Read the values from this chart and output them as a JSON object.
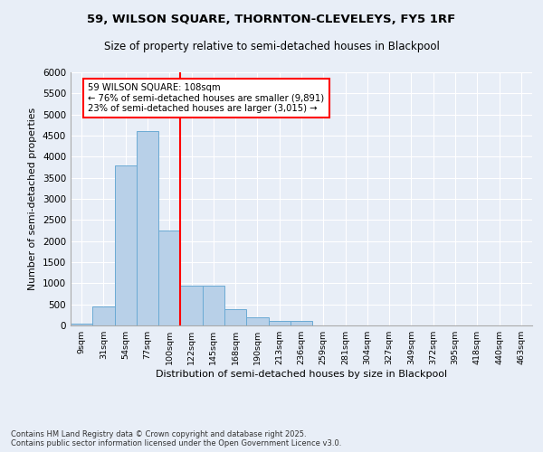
{
  "title1": "59, WILSON SQUARE, THORNTON-CLEVELEYS, FY5 1RF",
  "title2": "Size of property relative to semi-detached houses in Blackpool",
  "xlabel": "Distribution of semi-detached houses by size in Blackpool",
  "ylabel": "Number of semi-detached properties",
  "categories": [
    "9sqm",
    "31sqm",
    "54sqm",
    "77sqm",
    "100sqm",
    "122sqm",
    "145sqm",
    "168sqm",
    "190sqm",
    "213sqm",
    "236sqm",
    "259sqm",
    "281sqm",
    "304sqm",
    "327sqm",
    "349sqm",
    "372sqm",
    "395sqm",
    "418sqm",
    "440sqm",
    "463sqm"
  ],
  "values": [
    50,
    450,
    3800,
    4600,
    2250,
    950,
    950,
    380,
    200,
    110,
    100,
    0,
    0,
    0,
    0,
    0,
    0,
    0,
    0,
    0,
    0
  ],
  "bar_color": "#b8d0e8",
  "bar_edge_color": "#6aaad4",
  "vline_color": "red",
  "vline_pos": 4.5,
  "annotation_title": "59 WILSON SQUARE: 108sqm",
  "annotation_line1": "← 76% of semi-detached houses are smaller (9,891)",
  "annotation_line2": "23% of semi-detached houses are larger (3,015) →",
  "annotation_box_color": "white",
  "annotation_box_edge": "red",
  "ylim": [
    0,
    6000
  ],
  "yticks": [
    0,
    500,
    1000,
    1500,
    2000,
    2500,
    3000,
    3500,
    4000,
    4500,
    5000,
    5500,
    6000
  ],
  "background_color": "#e8eef7",
  "footer1": "Contains HM Land Registry data © Crown copyright and database right 2025.",
  "footer2": "Contains public sector information licensed under the Open Government Licence v3.0.",
  "grid_color": "white",
  "title_fontsize": 9.5,
  "subtitle_fontsize": 8.5
}
